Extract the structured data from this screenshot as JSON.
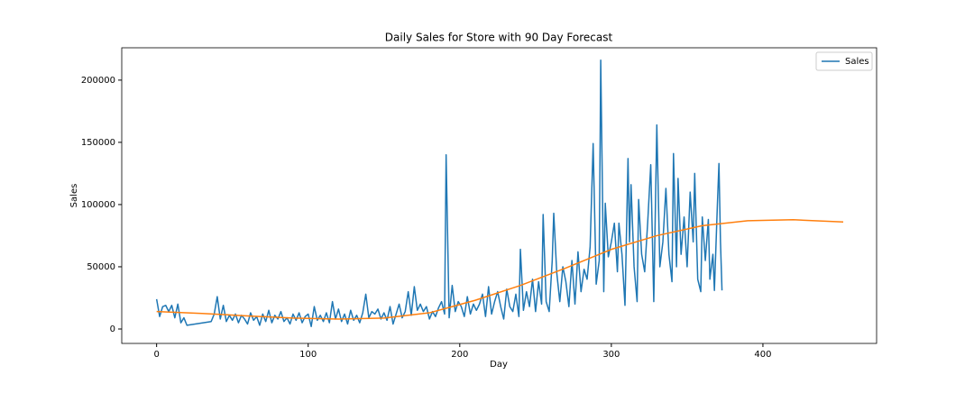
{
  "chart_data": {
    "type": "line",
    "title": "Daily Sales for Store with 90 Day Forecast",
    "xlabel": "Day",
    "ylabel": "Sales",
    "xlim": [
      -23,
      475
    ],
    "ylim": [
      -11600,
      226000
    ],
    "xticks": [
      0,
      100,
      200,
      300,
      400
    ],
    "yticks": [
      0,
      50000,
      100000,
      150000,
      200000
    ],
    "grid": false,
    "legend": "upper right",
    "series": [
      {
        "name": "Sales",
        "color": "#1f77b4",
        "x": [
          0,
          2,
          4,
          6,
          8,
          10,
          12,
          14,
          16,
          18,
          20,
          36,
          38,
          40,
          42,
          44,
          46,
          48,
          50,
          52,
          54,
          56,
          58,
          60,
          62,
          64,
          66,
          68,
          70,
          72,
          74,
          76,
          78,
          80,
          82,
          84,
          86,
          88,
          90,
          92,
          94,
          96,
          98,
          100,
          102,
          104,
          106,
          108,
          110,
          112,
          114,
          116,
          118,
          120,
          122,
          124,
          126,
          128,
          130,
          132,
          134,
          136,
          138,
          140,
          142,
          144,
          146,
          148,
          150,
          152,
          154,
          156,
          158,
          160,
          162,
          164,
          166,
          168,
          170,
          172,
          174,
          176,
          178,
          180,
          182,
          184,
          186,
          188,
          190,
          191,
          193,
          195,
          197,
          199,
          201,
          203,
          205,
          207,
          209,
          211,
          213,
          215,
          217,
          219,
          221,
          223,
          225,
          227,
          229,
          231,
          233,
          235,
          237,
          239,
          240,
          242,
          244,
          246,
          248,
          250,
          252,
          254,
          255,
          257,
          259,
          261,
          262,
          264,
          266,
          268,
          270,
          272,
          274,
          276,
          278,
          280,
          282,
          284,
          286,
          288,
          290,
          292,
          293,
          295,
          296,
          298,
          300,
          302,
          304,
          305,
          307,
          309,
          311,
          312,
          313,
          315,
          317,
          318,
          320,
          322,
          324,
          326,
          328,
          330,
          332,
          334,
          336,
          338,
          340,
          341,
          343,
          344,
          346,
          348,
          350,
          352,
          354,
          355,
          357,
          359,
          360,
          362,
          364,
          365,
          367,
          368,
          370,
          371,
          372,
          373
        ],
        "values": [
          24000,
          10000,
          18000,
          19000,
          14000,
          19000,
          9000,
          20000,
          5000,
          9000,
          3000,
          6000,
          12000,
          26000,
          8000,
          19000,
          6000,
          11000,
          7000,
          12000,
          5000,
          11000,
          8000,
          4000,
          13000,
          7000,
          10000,
          3000,
          12000,
          6000,
          15000,
          5000,
          11000,
          8000,
          14000,
          6000,
          9000,
          4000,
          12000,
          7000,
          13000,
          5000,
          10000,
          12000,
          2000,
          18000,
          7000,
          11000,
          6000,
          13000,
          5000,
          22000,
          8000,
          16000,
          6000,
          12000,
          4000,
          15000,
          7000,
          11000,
          5000,
          13000,
          28000,
          9000,
          14000,
          12000,
          16000,
          8000,
          13000,
          7000,
          18000,
          4000,
          12000,
          20000,
          9000,
          14000,
          30000,
          11000,
          34000,
          15000,
          20000,
          14000,
          18000,
          8000,
          14000,
          10000,
          17000,
          22000,
          12000,
          140000,
          9000,
          35000,
          14000,
          22000,
          18000,
          10000,
          26000,
          12000,
          20000,
          15000,
          20000,
          28000,
          10000,
          34000,
          12000,
          22000,
          30000,
          18000,
          8000,
          32000,
          18000,
          14000,
          28000,
          10000,
          64000,
          15000,
          30000,
          18000,
          40000,
          14000,
          38000,
          20000,
          92000,
          22000,
          14000,
          55000,
          93000,
          45000,
          22000,
          50000,
          38000,
          18000,
          55000,
          20000,
          62000,
          30000,
          48000,
          40000,
          66000,
          149000,
          36000,
          55000,
          216000,
          30000,
          101000,
          58000,
          70000,
          85000,
          46000,
          85000,
          60000,
          19000,
          137000,
          70000,
          116000,
          50000,
          22000,
          104000,
          60000,
          46000,
          86000,
          132000,
          22000,
          164000,
          50000,
          70000,
          113000,
          60000,
          38000,
          141000,
          50000,
          121000,
          60000,
          90000,
          50000,
          110000,
          70000,
          125000,
          40000,
          30000,
          90000,
          55000,
          88000,
          40000,
          60000,
          31000,
          101000,
          133000,
          70000,
          31000
        ]
      },
      {
        "color": "#ff7f0e",
        "x": [
          0,
          30,
          60,
          90,
          120,
          150,
          180,
          210,
          240,
          270,
          300,
          330,
          360,
          390,
          420,
          453
        ],
        "values": [
          14000,
          12500,
          10500,
          8800,
          8000,
          8800,
          13000,
          23000,
          35000,
          49000,
          64000,
          75000,
          83000,
          87000,
          87800,
          86000
        ]
      }
    ]
  }
}
